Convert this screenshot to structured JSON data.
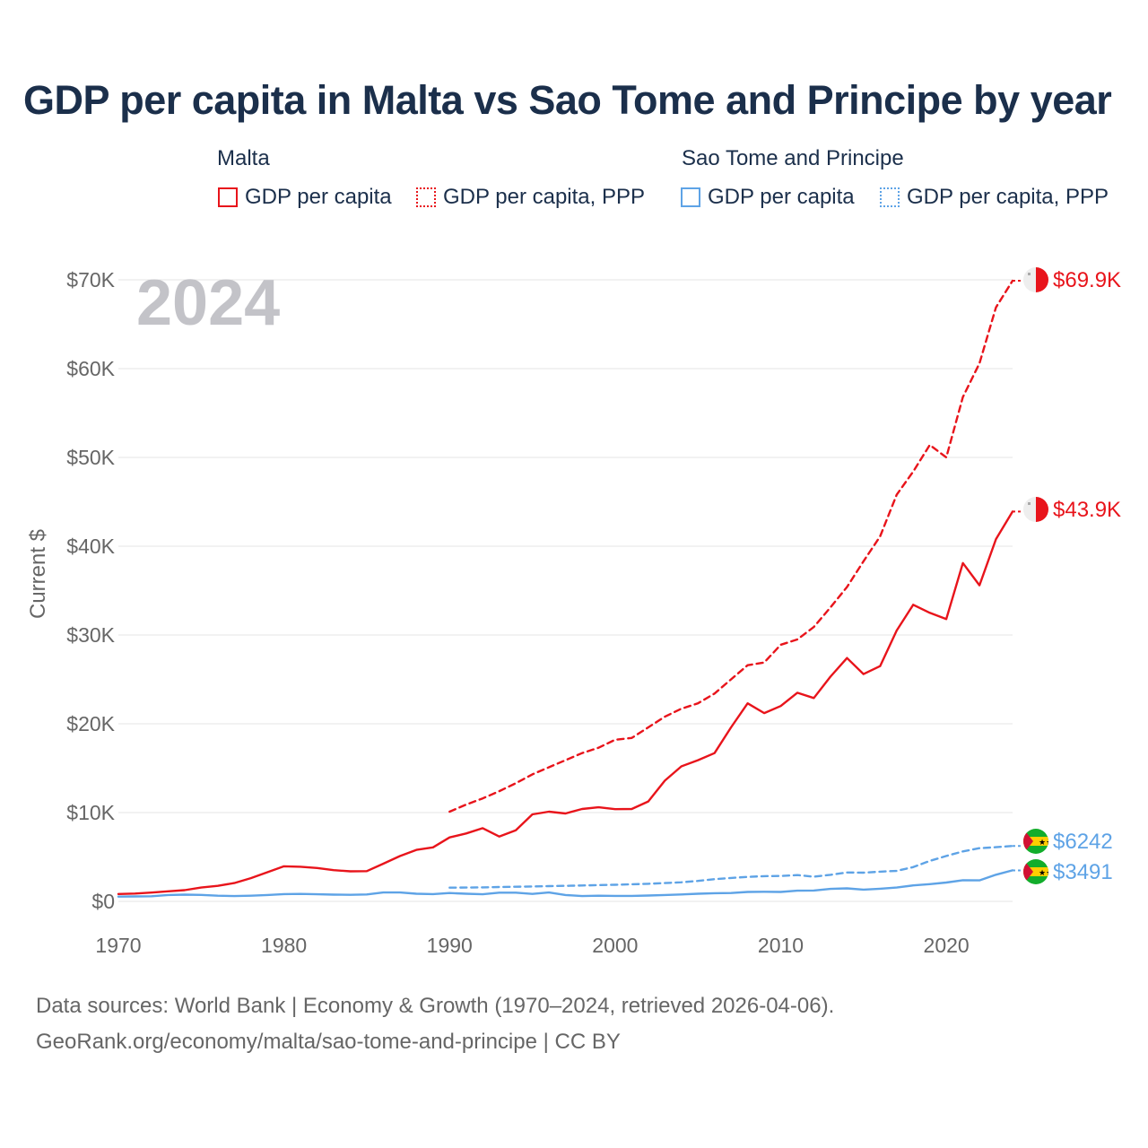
{
  "title": "GDP per capita in Malta vs Sao Tome and Principe by year",
  "legend": {
    "groups": [
      {
        "name": "Malta",
        "items": [
          "GDP per capita",
          "GDP per capita, PPP"
        ]
      },
      {
        "name": "Sao Tome and Principe",
        "items": [
          "GDP per capita",
          "GDP per capita, PPP"
        ]
      }
    ]
  },
  "colors": {
    "malta": "#e8141b",
    "stp": "#5ea3e6",
    "grid": "#e6e6e6",
    "axis_text": "#666666",
    "year_watermark": "#c3c3c8"
  },
  "footer": {
    "line1": "Data sources: World Bank | Economy & Growth (1970–2024, retrieved 2026-04-06).",
    "line2": "GeoRank.org/economy/malta/sao-tome-and-principe | CC BY"
  },
  "chart_data": {
    "type": "line",
    "year_label": "2024",
    "ylabel": "Current $",
    "xlim": [
      1970,
      2024
    ],
    "ylim": [
      0,
      70000
    ],
    "x_ticks": [
      "1970",
      "1980",
      "1990",
      "2000",
      "2010",
      "2020"
    ],
    "y_ticks": [
      "$0",
      "$10K",
      "$20K",
      "$30K",
      "$40K",
      "$50K",
      "$60K",
      "$70K"
    ],
    "series": [
      {
        "name": "Malta GDP per capita",
        "country": "Malta",
        "style": "solid",
        "color": "#e8141b",
        "end_label": "$43.9K",
        "start_year": 1970,
        "values": [
          830,
          880,
          990,
          1130,
          1260,
          1560,
          1750,
          2060,
          2620,
          3280,
          3950,
          3900,
          3760,
          3520,
          3380,
          3400,
          4240,
          5100,
          5800,
          6080,
          7200,
          7650,
          8240,
          7300,
          8000,
          9800,
          10100,
          9900,
          10400,
          10600,
          10380,
          10400,
          11250,
          13600,
          15200,
          15900,
          16700,
          19600,
          22300,
          21200,
          22000,
          23500,
          22900,
          25300,
          27400,
          25600,
          26500,
          30500,
          33400,
          32500,
          31800,
          38100,
          35600,
          40800,
          43900
        ]
      },
      {
        "name": "Malta GDP per capita, PPP",
        "country": "Malta",
        "style": "dashed",
        "color": "#e8141b",
        "end_label": "$69.9K",
        "start_year": 1990,
        "values": [
          10100,
          10900,
          11600,
          12400,
          13300,
          14300,
          15100,
          15900,
          16700,
          17300,
          18200,
          18400,
          19600,
          20800,
          21700,
          22300,
          23400,
          25000,
          26600,
          26900,
          28900,
          29500,
          30900,
          33100,
          35400,
          38300,
          41100,
          45800,
          48400,
          51400,
          50000,
          56800,
          60600,
          66900,
          69900
        ]
      },
      {
        "name": "Sao Tome and Principe GDP per capita",
        "country": "Sao Tome and Principe",
        "style": "solid",
        "color": "#5ea3e6",
        "end_label": "$3491",
        "start_year": 1970,
        "values": [
          540,
          560,
          580,
          720,
          760,
          730,
          640,
          600,
          640,
          720,
          820,
          840,
          800,
          760,
          740,
          780,
          1000,
          1000,
          860,
          820,
          940,
          860,
          800,
          980,
          980,
          840,
          1000,
          720,
          600,
          640,
          620,
          620,
          660,
          720,
          780,
          860,
          920,
          940,
          1060,
          1080,
          1060,
          1200,
          1220,
          1400,
          1460,
          1320,
          1420,
          1560,
          1800,
          1940,
          2120,
          2380,
          2360,
          3000,
          3491
        ]
      },
      {
        "name": "Sao Tome and Principe GDP per capita, PPP",
        "country": "Sao Tome and Principe",
        "style": "dashed",
        "color": "#5ea3e6",
        "end_label": "$6242",
        "start_year": 1990,
        "values": [
          1550,
          1560,
          1580,
          1620,
          1650,
          1680,
          1720,
          1750,
          1790,
          1830,
          1870,
          1920,
          1980,
          2060,
          2150,
          2300,
          2510,
          2640,
          2760,
          2840,
          2860,
          2960,
          2780,
          2990,
          3250,
          3230,
          3340,
          3430,
          3860,
          4560,
          5110,
          5630,
          5990,
          6100,
          6242
        ]
      }
    ]
  }
}
